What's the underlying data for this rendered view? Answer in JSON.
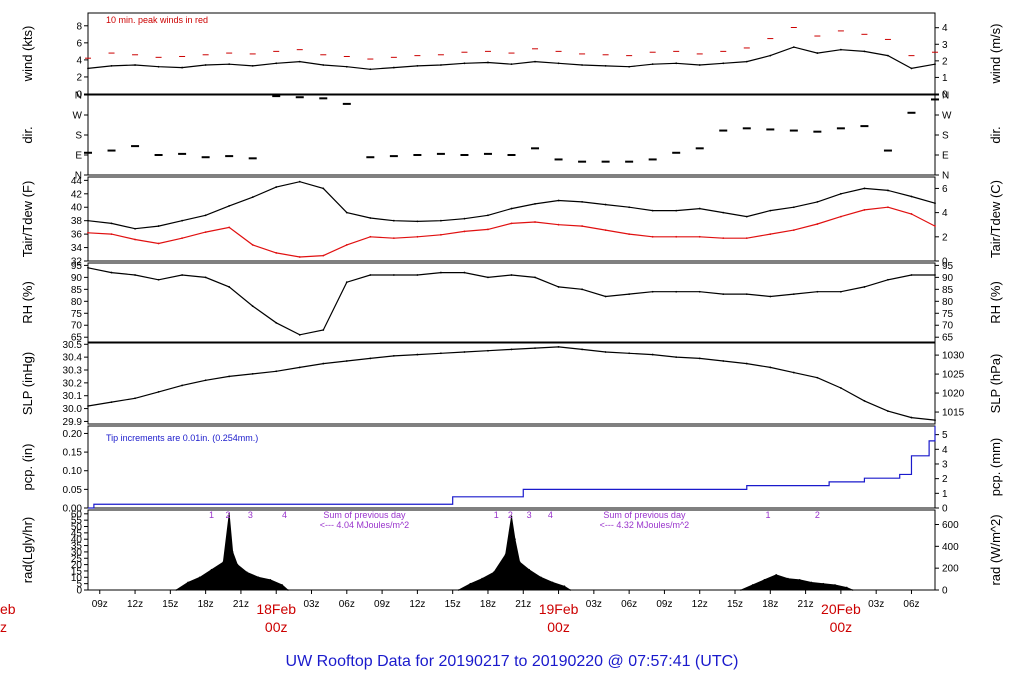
{
  "chart_data": {
    "type": "line",
    "title": "UW Rooftop Data for 20190217  to  20190220 @ 07:57:41  (UTC)",
    "x_range_hours": [
      8,
      80
    ],
    "x_tick_labels": [
      "09z",
      "12z",
      "15z",
      "18z",
      "21z",
      "18Feb",
      "03z",
      "06z",
      "09z",
      "12z",
      "15z",
      "18z",
      "21z",
      "19Feb",
      "03z",
      "06z",
      "09z",
      "12z",
      "15z",
      "18z",
      "21z",
      "20Feb",
      "03z",
      "06z"
    ],
    "day_labels": [
      {
        "date": "18Feb",
        "time": "00z",
        "hour": 24
      },
      {
        "date": "19Feb",
        "time": "00z",
        "hour": 48
      },
      {
        "date": "20Feb",
        "time": "00z",
        "hour": 72
      }
    ],
    "edge_day_label": {
      "date": "eb",
      "time": "z"
    },
    "panels": [
      {
        "id": "wind",
        "ylabel": "wind (kts)",
        "ylabel_right": "wind (m/s)",
        "ylim": [
          0,
          9.5
        ],
        "left_ticks": [
          "0",
          "2",
          "4",
          "6",
          "8"
        ],
        "right_ticks": [
          "0",
          "1",
          "2",
          "3",
          "4"
        ],
        "note": "10 min. peak winds in red",
        "series": [
          {
            "name": "wind",
            "color": "#000000",
            "x": [
              8,
              10,
              12,
              14,
              16,
              18,
              20,
              22,
              24,
              26,
              28,
              30,
              32,
              34,
              36,
              38,
              40,
              42,
              44,
              46,
              48,
              50,
              52,
              54,
              56,
              58,
              60,
              62,
              64,
              66,
              68,
              70,
              72,
              74,
              76,
              78,
              80
            ],
            "y": [
              3.0,
              3.3,
              3.4,
              3.2,
              3.1,
              3.4,
              3.5,
              3.3,
              3.6,
              3.8,
              3.4,
              3.2,
              2.9,
              3.1,
              3.3,
              3.4,
              3.6,
              3.7,
              3.5,
              3.8,
              3.6,
              3.4,
              3.3,
              3.2,
              3.5,
              3.6,
              3.4,
              3.6,
              3.8,
              4.5,
              5.5,
              4.8,
              5.2,
              5.0,
              4.5,
              3.0,
              3.5
            ]
          },
          {
            "name": "peak",
            "color": "#cc0000",
            "x": [
              8,
              10,
              12,
              14,
              16,
              18,
              20,
              22,
              24,
              26,
              28,
              30,
              32,
              34,
              36,
              38,
              40,
              42,
              44,
              46,
              48,
              50,
              52,
              54,
              56,
              58,
              60,
              62,
              64,
              66,
              68,
              70,
              72,
              74,
              76,
              78,
              80
            ],
            "y": [
              4.2,
              4.8,
              4.6,
              4.3,
              4.4,
              4.6,
              4.8,
              4.7,
              5.0,
              5.2,
              4.6,
              4.4,
              4.1,
              4.3,
              4.5,
              4.6,
              4.9,
              5.0,
              4.8,
              5.3,
              5.0,
              4.7,
              4.6,
              4.5,
              4.9,
              5.0,
              4.7,
              5.0,
              5.4,
              6.5,
              7.8,
              6.8,
              7.4,
              7.0,
              6.4,
              4.5,
              4.9
            ]
          }
        ]
      },
      {
        "id": "dir",
        "ylabel": "dir.",
        "ylabel_right": "dir.",
        "ylim": [
          0,
          360
        ],
        "left_ticks": [
          "N",
          "E",
          "S",
          "W",
          "N"
        ],
        "right_ticks": [
          "N",
          "E",
          "S",
          "W",
          "N"
        ],
        "series": [
          {
            "name": "direction",
            "color": "#000000",
            "x": [
              8,
              10,
              12,
              14,
              16,
              18,
              20,
              22,
              24,
              26,
              28,
              30,
              32,
              34,
              36,
              38,
              40,
              42,
              44,
              46,
              48,
              50,
              52,
              54,
              56,
              58,
              60,
              62,
              64,
              66,
              68,
              70,
              72,
              74,
              76,
              78,
              80
            ],
            "y": [
              100,
              110,
              130,
              90,
              95,
              80,
              85,
              75,
              355,
              350,
              345,
              320,
              80,
              85,
              90,
              95,
              90,
              95,
              90,
              120,
              70,
              60,
              60,
              60,
              70,
              100,
              120,
              200,
              210,
              205,
              200,
              195,
              210,
              220,
              110,
              280,
              340
            ]
          }
        ]
      },
      {
        "id": "temp",
        "ylabel": "Tair/Tdew (F)",
        "ylabel_right": "Tair/Tdew (C)",
        "ylim": [
          32,
          44.5
        ],
        "left_ticks": [
          "32",
          "34",
          "36",
          "38",
          "40",
          "42",
          "44"
        ],
        "right_ticks": [
          "0",
          "2",
          "4",
          "6"
        ],
        "series": [
          {
            "name": "Tair",
            "color": "#000000",
            "x": [
              8,
              10,
              12,
              14,
              16,
              18,
              20,
              22,
              24,
              26,
              28,
              30,
              32,
              34,
              36,
              38,
              40,
              42,
              44,
              46,
              48,
              50,
              52,
              54,
              56,
              58,
              60,
              62,
              64,
              66,
              68,
              70,
              72,
              74,
              76,
              78,
              80
            ],
            "y": [
              38.0,
              37.6,
              36.8,
              37.2,
              38.0,
              38.8,
              40.2,
              41.5,
              43.0,
              43.8,
              42.8,
              39.2,
              38.4,
              38.0,
              37.9,
              38.0,
              38.3,
              38.8,
              39.8,
              40.5,
              41.0,
              40.8,
              40.4,
              40.0,
              39.5,
              39.5,
              39.8,
              39.2,
              38.6,
              39.5,
              40.0,
              40.8,
              42.0,
              42.8,
              42.5,
              41.6,
              40.6
            ]
          },
          {
            "name": "Tdew",
            "color": "#e01010",
            "x": [
              8,
              10,
              12,
              14,
              16,
              18,
              20,
              22,
              24,
              26,
              28,
              30,
              32,
              34,
              36,
              38,
              40,
              42,
              44,
              46,
              48,
              50,
              52,
              54,
              56,
              58,
              60,
              62,
              64,
              66,
              68,
              70,
              72,
              74,
              76,
              78,
              80
            ],
            "y": [
              36.2,
              36.0,
              35.2,
              34.6,
              35.4,
              36.3,
              37.0,
              34.4,
              33.2,
              32.6,
              32.8,
              34.4,
              35.6,
              35.4,
              35.6,
              35.9,
              36.4,
              36.7,
              37.6,
              37.8,
              37.4,
              37.2,
              36.6,
              36.0,
              35.6,
              35.6,
              35.6,
              35.4,
              35.4,
              36.0,
              36.6,
              37.5,
              38.6,
              39.6,
              40.0,
              39.0,
              37.2
            ]
          }
        ]
      },
      {
        "id": "rh",
        "ylabel": "RH (%)",
        "ylabel_right": "RH (%)",
        "ylim": [
          63,
          96
        ],
        "left_ticks": [
          "65",
          "70",
          "75",
          "80",
          "85",
          "90",
          "95"
        ],
        "right_ticks": [
          "65",
          "70",
          "75",
          "80",
          "85",
          "90",
          "95"
        ],
        "series": [
          {
            "name": "RH",
            "color": "#000000",
            "x": [
              8,
              10,
              12,
              14,
              16,
              18,
              20,
              22,
              24,
              26,
              28,
              30,
              32,
              34,
              36,
              38,
              40,
              42,
              44,
              46,
              48,
              50,
              52,
              54,
              56,
              58,
              60,
              62,
              64,
              66,
              68,
              70,
              72,
              74,
              76,
              78,
              80
            ],
            "y": [
              94,
              92,
              91,
              89,
              91,
              90,
              86,
              78,
              71,
              66,
              68,
              88,
              91,
              91,
              91,
              92,
              92,
              90,
              91,
              90,
              86,
              85,
              82,
              83,
              84,
              84,
              84,
              83,
              83,
              82,
              83,
              84,
              84,
              86,
              89,
              91,
              91
            ]
          }
        ]
      },
      {
        "id": "slp",
        "ylabel": "SLP (inHg)",
        "ylabel_right": "SLP (hPa)",
        "ylim": [
          29.88,
          30.51
        ],
        "left_ticks": [
          "29.9",
          "30.0",
          "30.1",
          "30.2",
          "30.3",
          "30.4",
          "30.5"
        ],
        "right_ticks": [
          "1015",
          "1020",
          "1025",
          "1030"
        ],
        "series": [
          {
            "name": "SLP",
            "color": "#000000",
            "x": [
              8,
              10,
              12,
              14,
              16,
              18,
              20,
              22,
              24,
              26,
              28,
              30,
              32,
              34,
              36,
              38,
              40,
              42,
              44,
              46,
              48,
              50,
              52,
              54,
              56,
              58,
              60,
              62,
              64,
              66,
              68,
              70,
              72,
              74,
              76,
              78,
              80
            ],
            "y": [
              30.02,
              30.05,
              30.08,
              30.13,
              30.18,
              30.22,
              30.25,
              30.27,
              30.29,
              30.32,
              30.35,
              30.37,
              30.39,
              30.41,
              30.42,
              30.43,
              30.44,
              30.45,
              30.46,
              30.47,
              30.48,
              30.46,
              30.44,
              30.43,
              30.42,
              30.4,
              30.39,
              30.37,
              30.35,
              30.32,
              30.28,
              30.24,
              30.16,
              30.06,
              29.98,
              29.93,
              29.91
            ]
          }
        ]
      },
      {
        "id": "pcp",
        "ylabel": "pcp. (in)",
        "ylabel_right": "pcp. (mm)",
        "ylim": [
          0,
          0.22
        ],
        "left_ticks": [
          "0.00",
          "0.05",
          "0.10",
          "0.15",
          "0.20"
        ],
        "right_ticks": [
          "0",
          "1",
          "2",
          "3",
          "4",
          "5"
        ],
        "note": "Tip increments are 0.01in. (0.254mm.)",
        "series": [
          {
            "name": "pcp",
            "color": "#1a1acc",
            "x": [
              8,
              8.5,
              38,
              39,
              44,
              45,
              63,
              64,
              70,
              71,
              73,
              74,
              76,
              77,
              78,
              79.5,
              80
            ],
            "y": [
              0,
              0.01,
              0.01,
              0.03,
              0.03,
              0.05,
              0.05,
              0.06,
              0.06,
              0.07,
              0.07,
              0.08,
              0.08,
              0.09,
              0.14,
              0.18,
              0.22
            ]
          }
        ]
      },
      {
        "id": "rad",
        "ylabel": "rad(Lgly/hr)",
        "ylabel_right": "rad (W/m^2)",
        "ylim": [
          0,
          63
        ],
        "left_ticks": [
          "0",
          "5",
          "10",
          "15",
          "20",
          "25",
          "30",
          "35",
          "40",
          "45",
          "50",
          "55",
          "60"
        ],
        "right_ticks": [
          "0",
          "200",
          "400",
          "600"
        ],
        "series": [
          {
            "name": "rad",
            "color": "#000000",
            "x": [
              15.5,
              16.5,
              17.5,
              18.5,
              19.5,
              20.0,
              20.3,
              20.7,
              21.5,
              22.5,
              23.5,
              24.5,
              25,
              39.5,
              40.5,
              41.5,
              42.5,
              43.5,
              44.0,
              44.3,
              44.7,
              45.5,
              46.5,
              47.5,
              48.5,
              49,
              63.5,
              64.5,
              65.5,
              66.5,
              67.5,
              68.5,
              69.5,
              70.5,
              71.5,
              72.5,
              73
            ],
            "y": [
              0,
              6,
              10,
              16,
              22,
              60,
              30,
              20,
              14,
              10,
              8,
              4,
              0,
              0,
              5,
              9,
              14,
              28,
              58,
              40,
              22,
              16,
              10,
              6,
              3,
              0,
              0,
              4,
              8,
              12,
              9,
              8,
              6,
              5,
              4,
              2,
              0
            ]
          }
        ],
        "markers": [
          {
            "label": "1",
            "hour": 18.5
          },
          {
            "label": "2",
            "hour": 19.9
          },
          {
            "label": "3",
            "hour": 21.8
          },
          {
            "label": "4",
            "hour": 24.7
          },
          {
            "label": "1",
            "hour": 42.7
          },
          {
            "label": "2",
            "hour": 43.9
          },
          {
            "label": "3",
            "hour": 45.5
          },
          {
            "label": "4",
            "hour": 47.3
          },
          {
            "label": "1",
            "hour": 65.8
          },
          {
            "label": "2",
            "hour": 70.0
          }
        ],
        "annotations": [
          {
            "line1": "Sum of previous day",
            "line2": "<--- 4.04 MJoules/m^2",
            "hour": 31.5
          },
          {
            "line1": "Sum of previous day",
            "line2": "<--- 4.32 MJoules/m^2",
            "hour": 55.3
          }
        ]
      }
    ]
  }
}
